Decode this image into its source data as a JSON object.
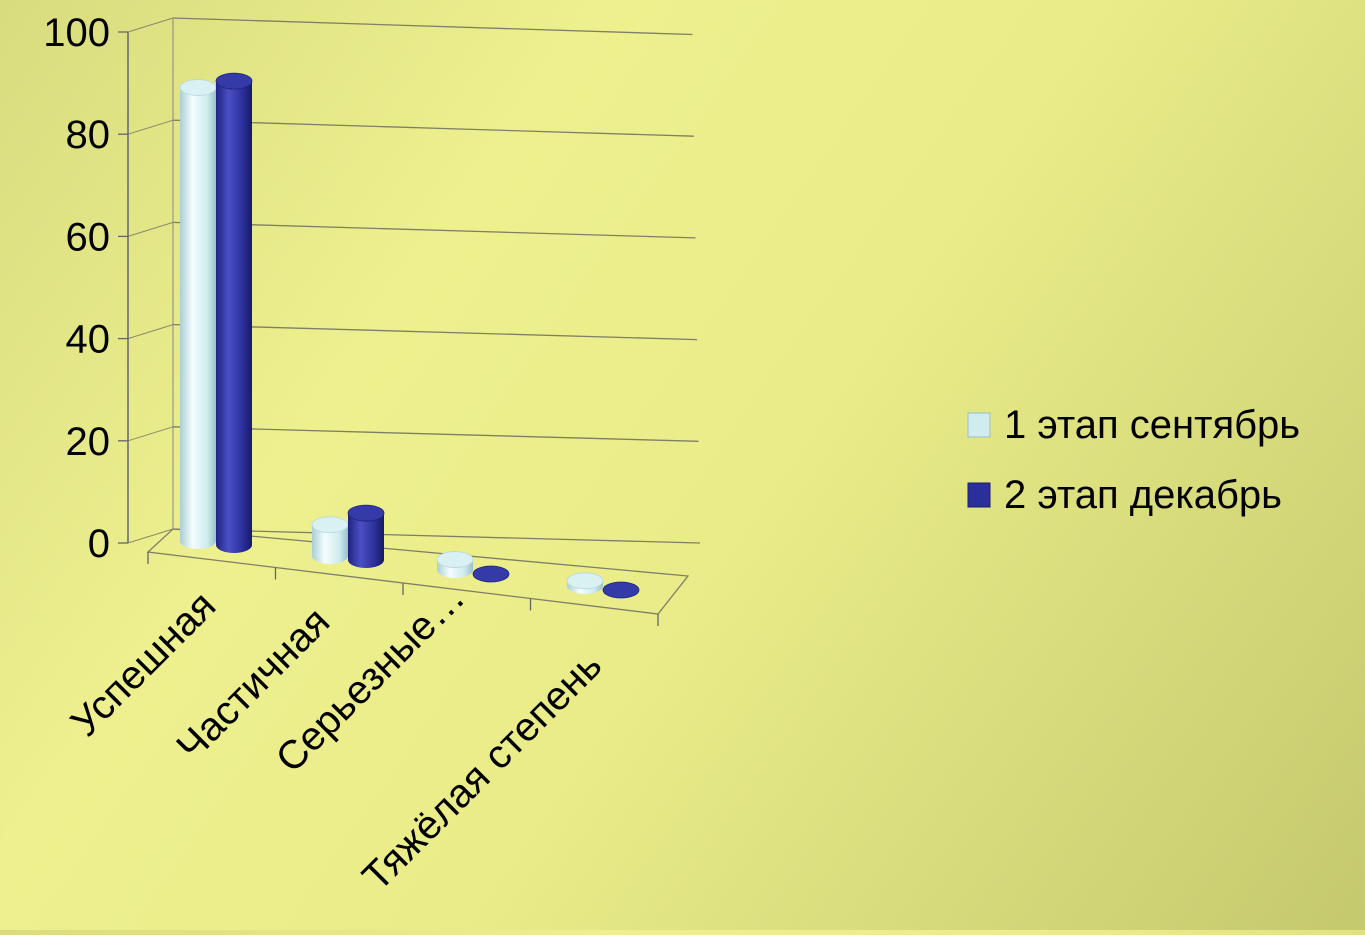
{
  "chart_data": {
    "type": "bar",
    "style": "3d-cylinder",
    "categories": [
      "Успешная",
      "Частичная",
      "Серьезные…",
      "Тяжёлая степень"
    ],
    "series": [
      {
        "name": "1 этап сентябрь",
        "color": "#cfecef",
        "values": [
          87,
          6,
          2,
          1
        ]
      },
      {
        "name": "2 этап декабрь",
        "color": "#2a2f9a",
        "values": [
          89,
          9,
          0,
          0
        ]
      }
    ],
    "ylim": [
      0,
      100
    ],
    "yticks": [
      0,
      20,
      40,
      60,
      80,
      100
    ],
    "grid": true,
    "legend": "right"
  }
}
